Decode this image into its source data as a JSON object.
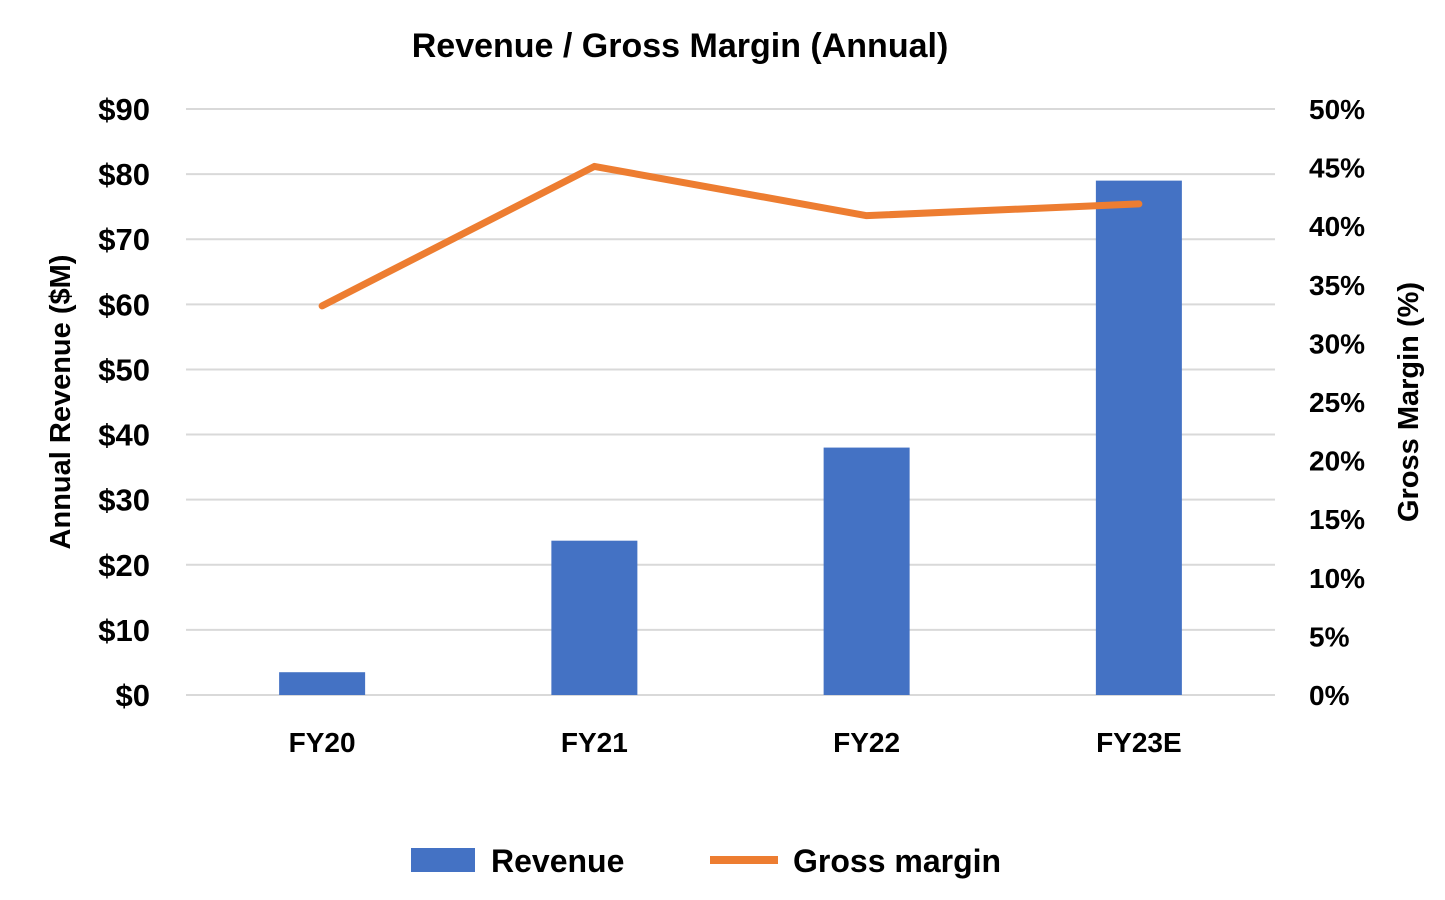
{
  "chart_data": {
    "type": "bar",
    "title": "Revenue / Gross Margin (Annual)",
    "categories": [
      "FY20",
      "FY21",
      "FY22",
      "FY23E"
    ],
    "ylabel": "Annual Revenue ($M)",
    "y2label": "Gross Margin (%)",
    "ylim": [
      0,
      90
    ],
    "y2lim": [
      0,
      50
    ],
    "y_ticks": [
      "$0",
      "$10",
      "$20",
      "$30",
      "$40",
      "$50",
      "$60",
      "$70",
      "$80",
      "$90"
    ],
    "y2_ticks": [
      "0%",
      "5%",
      "10%",
      "15%",
      "20%",
      "25%",
      "30%",
      "35%",
      "40%",
      "45%",
      "50%"
    ],
    "grid": true,
    "legend_position": "bottom",
    "series": [
      {
        "name": "Revenue",
        "type": "bar",
        "axis": "left",
        "color": "#4472c4",
        "values": [
          3.5,
          23.7,
          38,
          79
        ]
      },
      {
        "name": "Gross margin",
        "type": "line",
        "axis": "right",
        "color": "#ed7d31",
        "values": [
          33.2,
          45.1,
          40.9,
          41.9
        ]
      }
    ]
  }
}
